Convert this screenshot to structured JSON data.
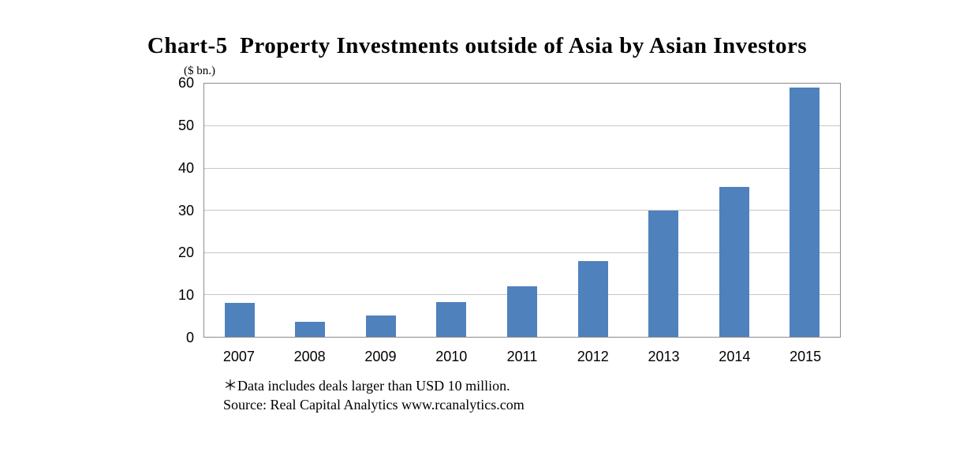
{
  "title": "Chart-5  Property Investments outside of Asia by Asian Investors",
  "y_unit_label": "($ bn.)",
  "footnote": "＊Data includes deals larger than USD 10 million.",
  "source": "Source: Real Capital Analytics www.rcanalytics.com",
  "colors": {
    "bar": "#4F81BD",
    "grid": "#C6C6C6",
    "plot_border": "#8C8C8C"
  },
  "chart_data": {
    "type": "bar",
    "categories": [
      "2007",
      "2008",
      "2009",
      "2010",
      "2011",
      "2012",
      "2013",
      "2014",
      "2015"
    ],
    "values": [
      8,
      3.5,
      5,
      8.3,
      12,
      18,
      30,
      35.5,
      59
    ],
    "title": "Chart-5  Property Investments outside of Asia by Asian Investors",
    "xlabel": "",
    "ylabel": "($ bn.)",
    "ylim": [
      0,
      60
    ],
    "yticks": [
      0,
      10,
      20,
      30,
      40,
      50,
      60
    ],
    "grid": true,
    "legend_position": "none",
    "annotations": [
      "＊Data includes deals larger than USD 10 million.",
      "Source: Real Capital Analytics www.rcanalytics.com"
    ]
  }
}
